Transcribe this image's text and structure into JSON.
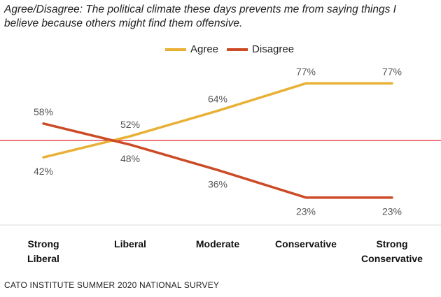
{
  "chart_data": {
    "type": "line",
    "title": "Agree/Disagree: The political climate these days prevents me from saying things I believe because others might find them offensive.",
    "categories": [
      [
        "Strong",
        "Liberal"
      ],
      [
        "Liberal"
      ],
      [
        "Moderate"
      ],
      [
        "Conservative"
      ],
      [
        "Strong",
        "Conservative"
      ]
    ],
    "series": [
      {
        "name": "Agree",
        "color": "#e8b135",
        "values": [
          42,
          52,
          64,
          77,
          77
        ],
        "labels": [
          "42%",
          "52%",
          "64%",
          "77%",
          "77%"
        ],
        "label_pos": [
          "below",
          "above",
          "above",
          "above",
          "above"
        ]
      },
      {
        "name": "Disagree",
        "color": "#cc4a25",
        "values": [
          58,
          48,
          36,
          23,
          23
        ],
        "labels": [
          "58%",
          "48%",
          "36%",
          "23%",
          "23%"
        ],
        "label_pos": [
          "above",
          "below",
          "below",
          "below",
          "below"
        ]
      }
    ],
    "reference_line": {
      "value": 50,
      "color": "#e0262b"
    },
    "ylim": [
      10,
      90
    ],
    "source": "CATO INSTITUTE SUMMER 2020 NATIONAL SURVEY"
  }
}
